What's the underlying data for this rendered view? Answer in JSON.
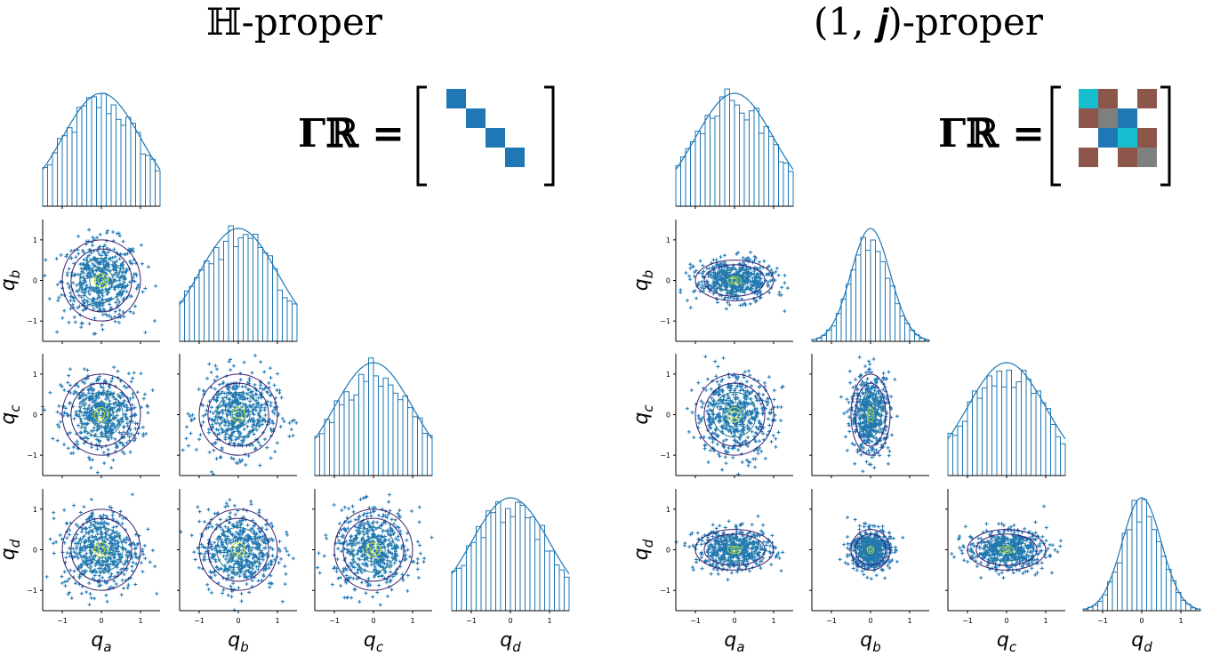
{
  "titles": {
    "left": "ℍ-proper",
    "right": "(1, 𝒋)-proper"
  },
  "gamma_label": "𝚪ℝ =",
  "colors": {
    "hist": "#1f77b4",
    "scatter": "#1f77b4",
    "contour_outer": "#3b1e6b",
    "contour_mid": "#2c7f8e",
    "contour_inner": "#b5de2b",
    "gamma_blue": "#1f77b4",
    "gamma_cyan": "#17becf",
    "gamma_brown": "#8c564b",
    "gamma_gray": "#7f7f7f"
  },
  "chart_data": [
    {
      "type": "pairplot",
      "title": "ℍ-proper",
      "variables": [
        "q_a",
        "q_b",
        "q_c",
        "q_d"
      ],
      "variable_labels": [
        "q",
        "q",
        "q",
        "q"
      ],
      "variable_subs": [
        "a",
        "b",
        "c",
        "d"
      ],
      "axis_range": [
        -1.5,
        1.5
      ],
      "xticks": [
        -1,
        0,
        1
      ],
      "yticks": [
        -1,
        0,
        1
      ],
      "variances": [
        1,
        1,
        1,
        1
      ],
      "correlation_matrix": [
        [
          1,
          0,
          0,
          0
        ],
        [
          0,
          1,
          0,
          0
        ],
        [
          0,
          0,
          1,
          0
        ],
        [
          0,
          0,
          0,
          1
        ]
      ],
      "gamma_matrix": [
        [
          "blue",
          "",
          "",
          ""
        ],
        [
          "",
          "blue",
          "",
          ""
        ],
        [
          "",
          "",
          "blue",
          ""
        ],
        [
          "",
          "",
          "",
          "blue"
        ]
      ]
    },
    {
      "type": "pairplot",
      "title": "(1, 𝒋)-proper",
      "variables": [
        "q_a",
        "q_b",
        "q_c",
        "q_d"
      ],
      "variable_labels": [
        "q",
        "q",
        "q",
        "q"
      ],
      "variable_subs": [
        "a",
        "b",
        "c",
        "d"
      ],
      "axis_range": [
        -1.5,
        1.5
      ],
      "xticks": [
        -1,
        0,
        1
      ],
      "yticks": [
        -1,
        0,
        1
      ],
      "variances": [
        1,
        0.25,
        1,
        0.25
      ],
      "correlation_matrix": [
        [
          1,
          0,
          0,
          0
        ],
        [
          0,
          1,
          0,
          0
        ],
        [
          0,
          0,
          1,
          0
        ],
        [
          0,
          0,
          0,
          1
        ]
      ],
      "gamma_matrix": [
        [
          "cyan",
          "brown",
          "",
          "brown"
        ],
        [
          "brown",
          "gray",
          "blue",
          ""
        ],
        [
          "",
          "blue",
          "cyan",
          "brown"
        ],
        [
          "brown",
          "",
          "brown",
          "gray"
        ]
      ]
    }
  ]
}
